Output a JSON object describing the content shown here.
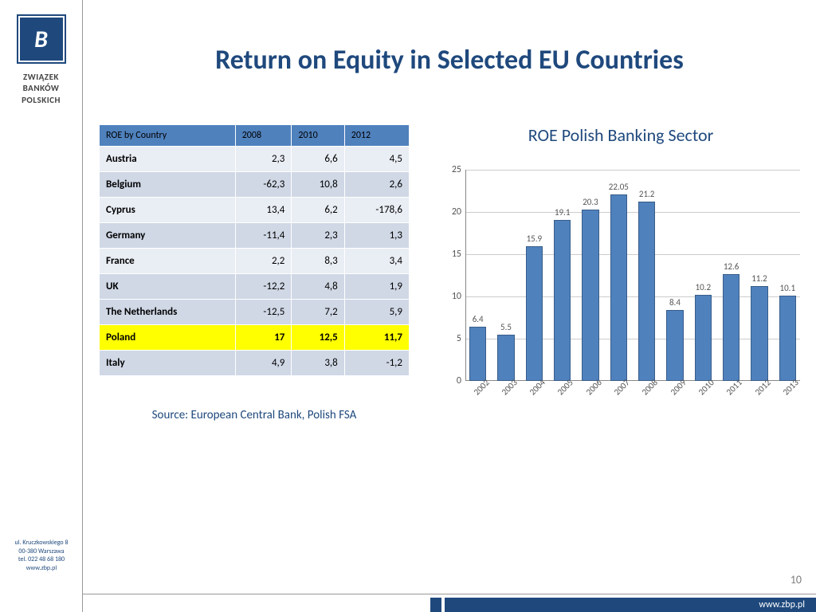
{
  "sidebar": {
    "logo_letter": "Β",
    "org_line1": "ZWIĄZEK",
    "org_line2": "BANKÓW",
    "org_line3": "POLSKICH",
    "addr1": "ul. Kruczkowskiego 8",
    "addr2": "00-380 Warszawa",
    "addr3": "tel. 022 48 68 180",
    "addr4": "www.zbp.pl"
  },
  "title": "Return on Equity in Selected EU Countries",
  "table": {
    "header": [
      "ROE by Country",
      "2008",
      "2010",
      "2012"
    ],
    "rows": [
      {
        "c": "Austria",
        "v": [
          "2,3",
          "6,6",
          "4,5"
        ],
        "hl": false,
        "alt": "a"
      },
      {
        "c": "Belgium",
        "v": [
          "-62,3",
          "10,8",
          "2,6"
        ],
        "hl": false,
        "alt": "b"
      },
      {
        "c": "Cyprus",
        "v": [
          "13,4",
          "6,2",
          "-178,6"
        ],
        "hl": false,
        "alt": "a"
      },
      {
        "c": "Germany",
        "v": [
          "-11,4",
          "2,3",
          "1,3"
        ],
        "hl": false,
        "alt": "b"
      },
      {
        "c": "France",
        "v": [
          "2,2",
          "8,3",
          "3,4"
        ],
        "hl": false,
        "alt": "a"
      },
      {
        "c": "UK",
        "v": [
          "-12,2",
          "4,8",
          "1,9"
        ],
        "hl": false,
        "alt": "b"
      },
      {
        "c": "The Netherlands",
        "v": [
          "-12,5",
          "7,2",
          "5,9"
        ],
        "hl": false,
        "alt": "b"
      },
      {
        "c": "Poland",
        "v": [
          "17",
          "12,5",
          "11,7"
        ],
        "hl": true,
        "alt": "a"
      },
      {
        "c": "Italy",
        "v": [
          "4,9",
          "3,8",
          "-1,2"
        ],
        "hl": false,
        "alt": "b"
      }
    ]
  },
  "source": "Source: European Central Bank, Polish FSA",
  "chart": {
    "title": "ROE Polish Banking Sector",
    "type": "bar",
    "ylim": [
      0,
      25
    ],
    "ytick_step": 5,
    "categories": [
      "2002",
      "2003",
      "2004",
      "2005",
      "2006",
      "2007",
      "2008",
      "2009",
      "2010",
      "2011",
      "2012",
      "2013"
    ],
    "values": [
      6.4,
      5.5,
      15.9,
      19.1,
      20.3,
      22.05,
      21.2,
      8.4,
      10.2,
      12.6,
      11.2,
      10.1
    ],
    "bar_color": "#4f81bd",
    "bar_border": "#385d8a",
    "grid_color": "#cccccc",
    "label_fontsize": 11
  },
  "page_number": "10",
  "footer_url": "www.zbp.pl"
}
